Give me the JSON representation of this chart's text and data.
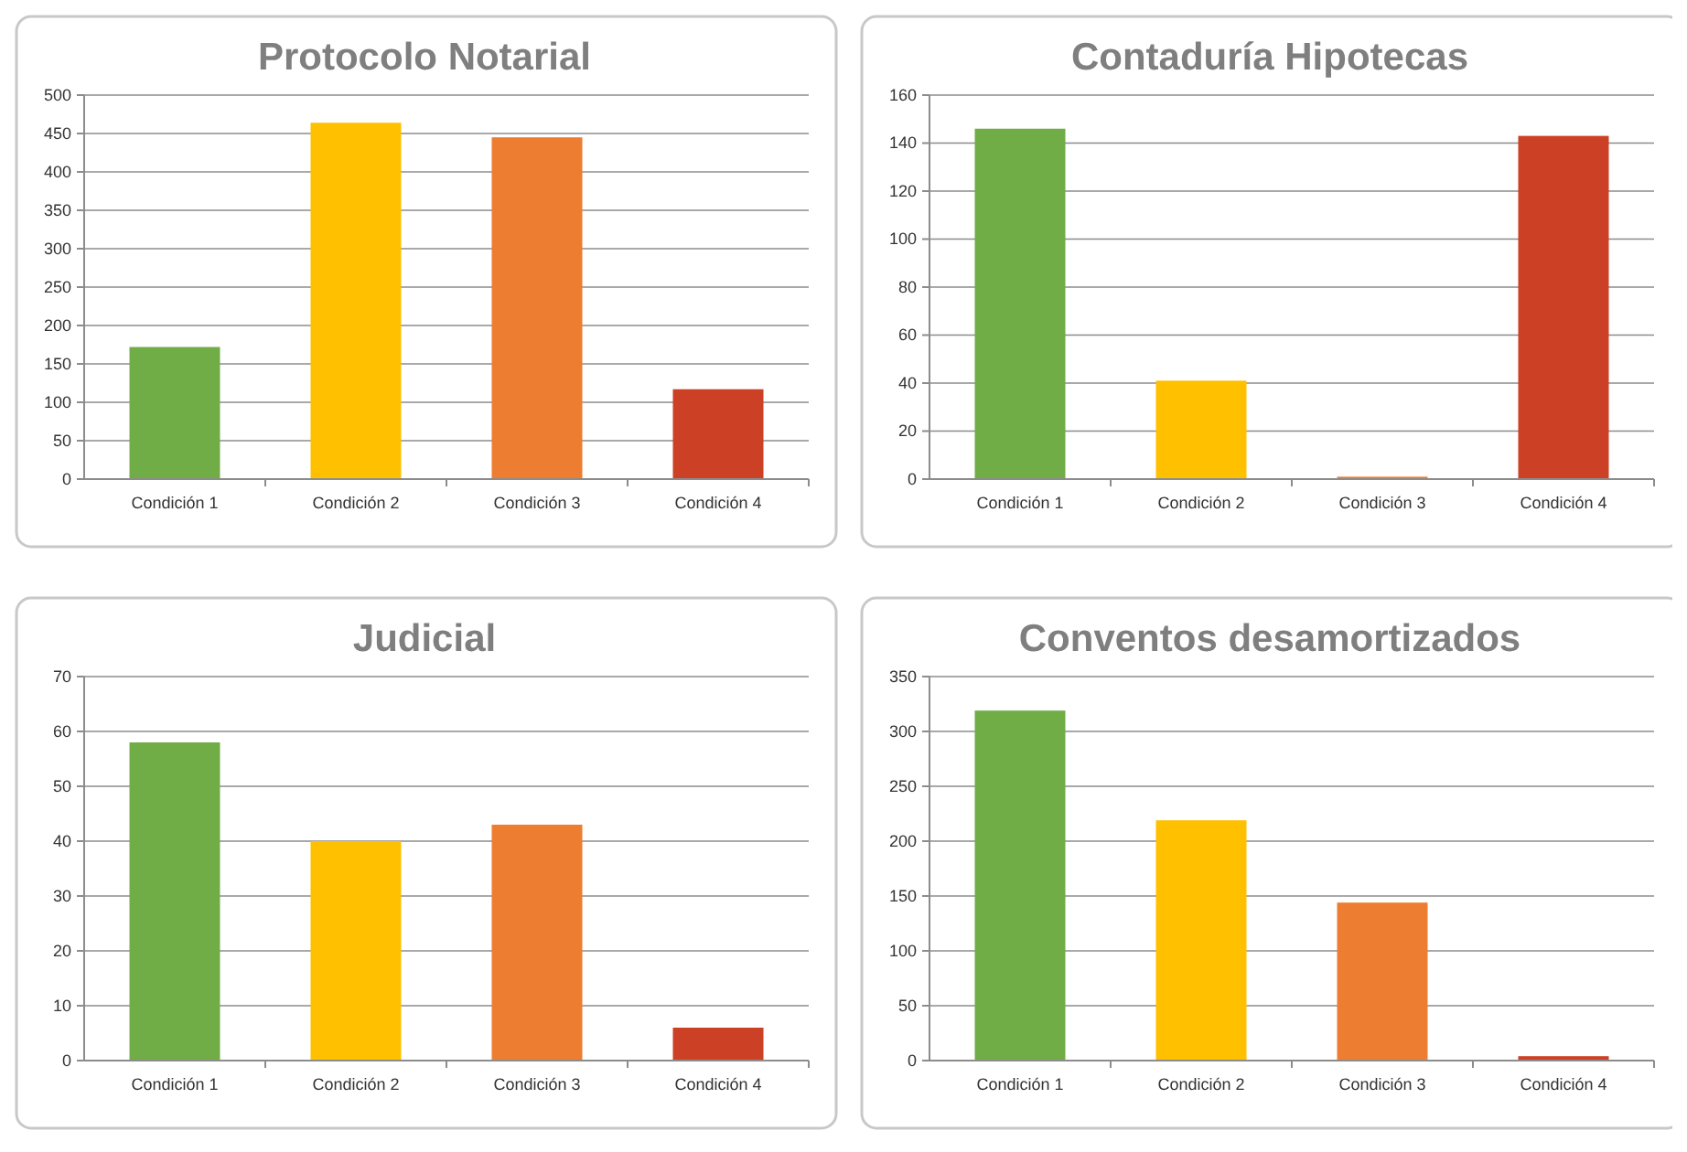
{
  "chart_data": [
    {
      "type": "bar",
      "title": "Protocolo Notarial",
      "categories": [
        "Condición 1",
        "Condición 2",
        "Condición 3",
        "Condición 4"
      ],
      "values": [
        172,
        464,
        445,
        117
      ],
      "colors": [
        "#70ad47",
        "#ffc000",
        "#ed7d31",
        "#cc4125"
      ],
      "ylim": [
        0,
        500
      ],
      "yticks": [
        0,
        50,
        100,
        150,
        200,
        250,
        300,
        350,
        400,
        450,
        500
      ],
      "grid": "y"
    },
    {
      "type": "bar",
      "title": "Contaduría Hipotecas",
      "categories": [
        "Condición 1",
        "Condición 2",
        "Condición 3",
        "Condición 4"
      ],
      "values": [
        146,
        41,
        1,
        143
      ],
      "colors": [
        "#70ad47",
        "#ffc000",
        "#ed7d31",
        "#cc4125"
      ],
      "ylim": [
        0,
        160
      ],
      "yticks": [
        0,
        20,
        40,
        60,
        80,
        100,
        120,
        140,
        160
      ],
      "grid": "y"
    },
    {
      "type": "bar",
      "title": "Judicial",
      "categories": [
        "Condición 1",
        "Condición 2",
        "Condición 3",
        "Condición 4"
      ],
      "values": [
        58,
        40,
        43,
        6
      ],
      "colors": [
        "#70ad47",
        "#ffc000",
        "#ed7d31",
        "#cc4125"
      ],
      "ylim": [
        0,
        70
      ],
      "yticks": [
        0,
        10,
        20,
        30,
        40,
        50,
        60,
        70
      ],
      "grid": "y"
    },
    {
      "type": "bar",
      "title": "Conventos desamortizados",
      "categories": [
        "Condición 1",
        "Condición 2",
        "Condición 3",
        "Condición 4"
      ],
      "values": [
        319,
        219,
        144,
        4
      ],
      "colors": [
        "#70ad47",
        "#ffc000",
        "#ed7d31",
        "#cc4125"
      ],
      "ylim": [
        0,
        350
      ],
      "yticks": [
        0,
        50,
        100,
        150,
        200,
        250,
        300,
        350
      ],
      "grid": "y"
    }
  ]
}
